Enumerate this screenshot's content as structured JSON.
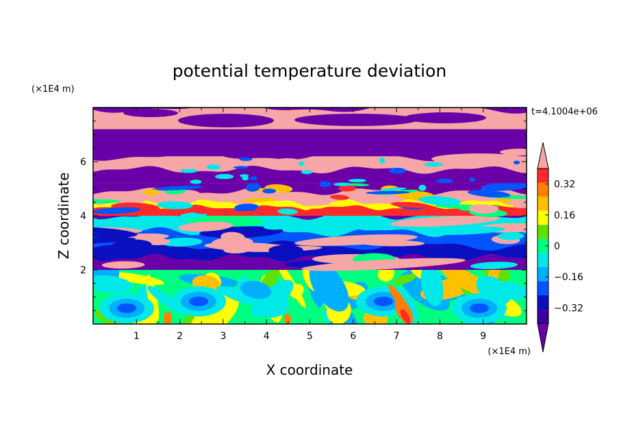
{
  "chart_data": {
    "type": "heatmap",
    "title": "potential temperature deviation",
    "time_label": "t=4.1004e+06",
    "xlabel": "X coordinate",
    "ylabel": "Z coordinate",
    "x_unit": "(×1E4 m)",
    "z_unit": "(×1E4 m)",
    "x_ticks": [
      1,
      2,
      3,
      4,
      5,
      6,
      7,
      8,
      9
    ],
    "z_ticks": [
      2,
      4,
      6
    ],
    "xlim": [
      0,
      10
    ],
    "zlim": [
      0,
      8
    ],
    "colorbar": {
      "levels": [
        -0.48,
        -0.4,
        -0.32,
        -0.24,
        -0.16,
        -0.08,
        0,
        0.08,
        0.16,
        0.24,
        0.32,
        0.4,
        0.48
      ],
      "tick_labels": [
        "0.32",
        "0.16",
        "0",
        "−0.16",
        "−0.32"
      ],
      "tick_values": [
        0.32,
        0.16,
        0,
        -0.16,
        -0.32
      ],
      "colors": [
        "#6a00a8",
        "#3a00a0",
        "#0a10c0",
        "#0055ff",
        "#00b0ff",
        "#00e8e8",
        "#00ff80",
        "#60e000",
        "#ffff00",
        "#ffc000",
        "#ff8000",
        "#ff2a2a",
        "#f6a6a6"
      ]
    },
    "bands": [
      {
        "z": [
          7.2,
          8.0
        ],
        "base": "pink",
        "noise": "purple"
      },
      {
        "z": [
          6.0,
          7.2
        ],
        "base": "purple",
        "noise": "pink"
      },
      {
        "z": [
          5.2,
          6.0
        ],
        "base": "pink",
        "noise": "purple"
      },
      {
        "z": [
          4.0,
          5.2
        ],
        "base": "mixed-warm",
        "noise": "cyan"
      },
      {
        "z": [
          2.0,
          4.0
        ],
        "base": "mixed-cold",
        "noise": "pink"
      },
      {
        "z": [
          0.0,
          2.0
        ],
        "base": "mixed-turbulent",
        "noise": "red"
      }
    ]
  }
}
